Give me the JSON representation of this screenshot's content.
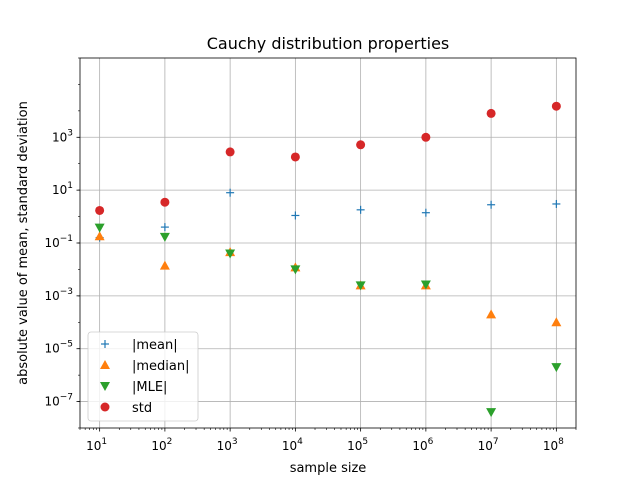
{
  "chart_data": {
    "type": "scatter",
    "title": "Cauchy distribution properties",
    "xlabel": "sample size",
    "ylabel": "absolute value of mean, standard deviation",
    "xscale": "log",
    "yscale": "log",
    "xlim": [
      5,
      200000000
    ],
    "ylim": [
      1e-08,
      1000000
    ],
    "grid": true,
    "legend_position": "lower-left",
    "x_ticks": [
      {
        "value": 10,
        "base": "10",
        "exp": "1"
      },
      {
        "value": 100,
        "base": "10",
        "exp": "2"
      },
      {
        "value": 1000,
        "base": "10",
        "exp": "3"
      },
      {
        "value": 10000,
        "base": "10",
        "exp": "4"
      },
      {
        "value": 100000,
        "base": "10",
        "exp": "5"
      },
      {
        "value": 1000000,
        "base": "10",
        "exp": "6"
      },
      {
        "value": 10000000,
        "base": "10",
        "exp": "7"
      },
      {
        "value": 100000000,
        "base": "10",
        "exp": "8"
      }
    ],
    "y_ticks": [
      {
        "value": 1e-07,
        "base": "10",
        "exp": "−7"
      },
      {
        "value": 1e-05,
        "base": "10",
        "exp": "−5"
      },
      {
        "value": 0.001,
        "base": "10",
        "exp": "−3"
      },
      {
        "value": 0.1,
        "base": "10",
        "exp": "−1"
      },
      {
        "value": 10,
        "base": "10",
        "exp": "1"
      },
      {
        "value": 1000,
        "base": "10",
        "exp": "3"
      }
    ],
    "x": [
      10,
      100,
      1000,
      10000,
      100000,
      1000000,
      10000000,
      100000000
    ],
    "series": [
      {
        "name": "|mean|",
        "marker": "plus",
        "color": "#1f77b4",
        "values": [
          0.16,
          0.4,
          8.0,
          1.1,
          1.8,
          1.4,
          2.8,
          3.0
        ]
      },
      {
        "name": "|median|",
        "marker": "triangle-up",
        "color": "#ff7f0e",
        "values": [
          0.18,
          0.014,
          0.045,
          0.012,
          0.0025,
          0.0025,
          0.0002,
          0.0001
        ]
      },
      {
        "name": "|MLE|",
        "marker": "triangle-down",
        "color": "#2ca02c",
        "values": [
          0.38,
          0.17,
          0.04,
          0.01,
          0.0025,
          0.0027,
          4e-08,
          2e-06
        ]
      },
      {
        "name": "std",
        "marker": "circle",
        "color": "#d62728",
        "values": [
          1.7,
          3.5,
          280,
          180,
          520,
          1000,
          8000,
          15000
        ]
      }
    ]
  }
}
